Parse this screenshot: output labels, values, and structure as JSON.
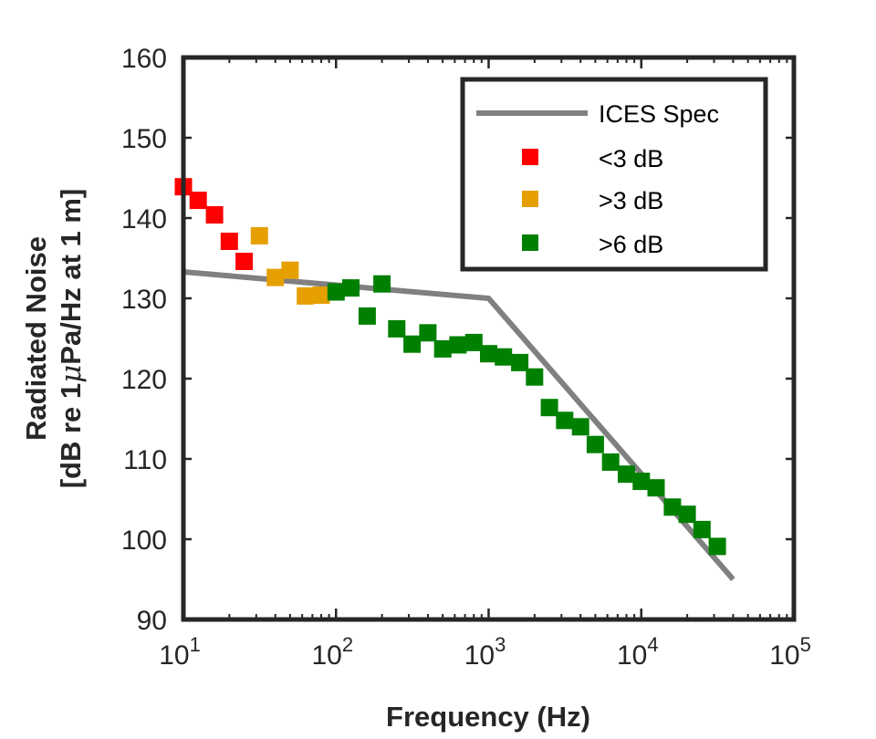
{
  "chart_data": {
    "type": "scatter",
    "title": "",
    "xlabel": "Frequency (Hz)",
    "ylabel_line1": "Radiated Noise",
    "ylabel_line2_parts": [
      "[dB re 1",
      "μ",
      "Pa/Hz at 1 m]"
    ],
    "x_scale": "log",
    "xlim": [
      10,
      100000
    ],
    "ylim": [
      90,
      160
    ],
    "x_ticks": [
      {
        "value": 10,
        "base": "10",
        "exp": "1"
      },
      {
        "value": 100,
        "base": "10",
        "exp": "2"
      },
      {
        "value": 1000,
        "base": "10",
        "exp": "3"
      },
      {
        "value": 10000,
        "base": "10",
        "exp": "4"
      },
      {
        "value": 100000,
        "base": "10",
        "exp": "5"
      }
    ],
    "y_ticks": [
      "90",
      "100",
      "110",
      "120",
      "130",
      "140",
      "150",
      "160"
    ],
    "grid": false,
    "legend_position": "top-right",
    "reference_line": {
      "name": "ICES Spec",
      "color": "#808080",
      "x": [
        10,
        1000,
        40000
      ],
      "y": [
        133.3,
        130.0,
        95.0
      ]
    },
    "series": [
      {
        "name": "<3 dB",
        "color": "#ff0000",
        "marker": "square",
        "x": [
          10,
          12.5,
          16,
          20,
          25
        ],
        "y": [
          143.9,
          142.2,
          140.4,
          137.1,
          134.6
        ]
      },
      {
        "name": ">3 dB",
        "color": "#e5a000",
        "marker": "square",
        "x": [
          31.5,
          40,
          50,
          63,
          80
        ],
        "y": [
          137.8,
          132.6,
          133.5,
          130.3,
          130.4
        ]
      },
      {
        "name": ">6 dB",
        "color": "#008000",
        "marker": "square",
        "x": [
          100,
          125,
          160,
          200,
          250,
          315,
          400,
          500,
          630,
          800,
          1000,
          1250,
          1600,
          2000,
          2500,
          3150,
          4000,
          5000,
          6300,
          8000,
          10000,
          12500,
          16000,
          20000,
          25000,
          31500
        ],
        "y": [
          130.8,
          131.3,
          127.8,
          131.8,
          126.2,
          124.3,
          125.7,
          123.7,
          124.2,
          124.5,
          123.1,
          122.7,
          122.0,
          120.2,
          116.4,
          114.8,
          114.0,
          111.8,
          109.6,
          108.1,
          107.2,
          106.4,
          104.0,
          103.1,
          101.2,
          99.1
        ]
      }
    ]
  }
}
